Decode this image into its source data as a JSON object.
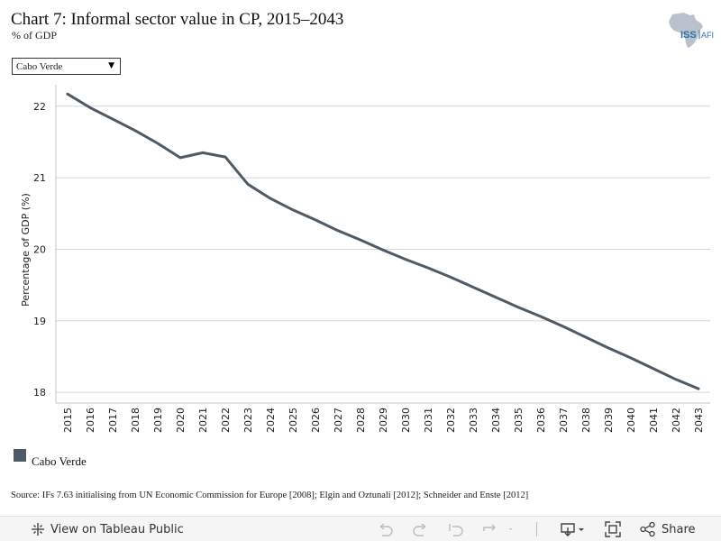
{
  "header": {
    "title": "Chart 7: Informal sector value in CP, 2015–2043",
    "subtitle": "% of GDP"
  },
  "logo": {
    "text": "ISS",
    "sub": "AFI",
    "icon": "africa-map-icon"
  },
  "filter": {
    "selected": "Cabo Verde",
    "icon": "caret-down-icon"
  },
  "chart_data": {
    "type": "line",
    "ylabel": "Percentage of GDP (%)",
    "xlabel": "",
    "ylim": [
      17.85,
      22.3
    ],
    "yticks": [
      18,
      19,
      20,
      21,
      22
    ],
    "grid": true,
    "x": [
      "2015",
      "2016",
      "2017",
      "2018",
      "2019",
      "2020",
      "2021",
      "2022",
      "2023",
      "2024",
      "2025",
      "2026",
      "2027",
      "2028",
      "2029",
      "2030",
      "2031",
      "2032",
      "2033",
      "2034",
      "2035",
      "2036",
      "2037",
      "2038",
      "2039",
      "2040",
      "2041",
      "2042",
      "2043"
    ],
    "series": [
      {
        "name": "Cabo Verde",
        "color": "#4e5a66",
        "values": [
          22.17,
          21.98,
          21.82,
          21.66,
          21.48,
          21.28,
          21.35,
          21.29,
          20.91,
          20.71,
          20.55,
          20.41,
          20.26,
          20.13,
          19.99,
          19.86,
          19.74,
          19.61,
          19.47,
          19.33,
          19.19,
          19.06,
          18.92,
          18.77,
          18.62,
          18.48,
          18.33,
          18.18,
          18.05
        ]
      }
    ],
    "legend": "bottom-left"
  },
  "legend": {
    "label": "Cabo Verde",
    "color": "#4e5a66"
  },
  "source": "Source: IFs 7.63 initialising from UN Economic Commission for Europe [2008]; Elgin and Oztunali [2012]; Schneider and Enste [2012]",
  "footer": {
    "view_label": "View on Tableau Public",
    "share_label": "Share",
    "icons": [
      "tableau-icon",
      "undo-icon",
      "redo-icon",
      "revert-icon",
      "refresh-icon",
      "download-icon",
      "fullscreen-icon",
      "share-icon"
    ]
  }
}
